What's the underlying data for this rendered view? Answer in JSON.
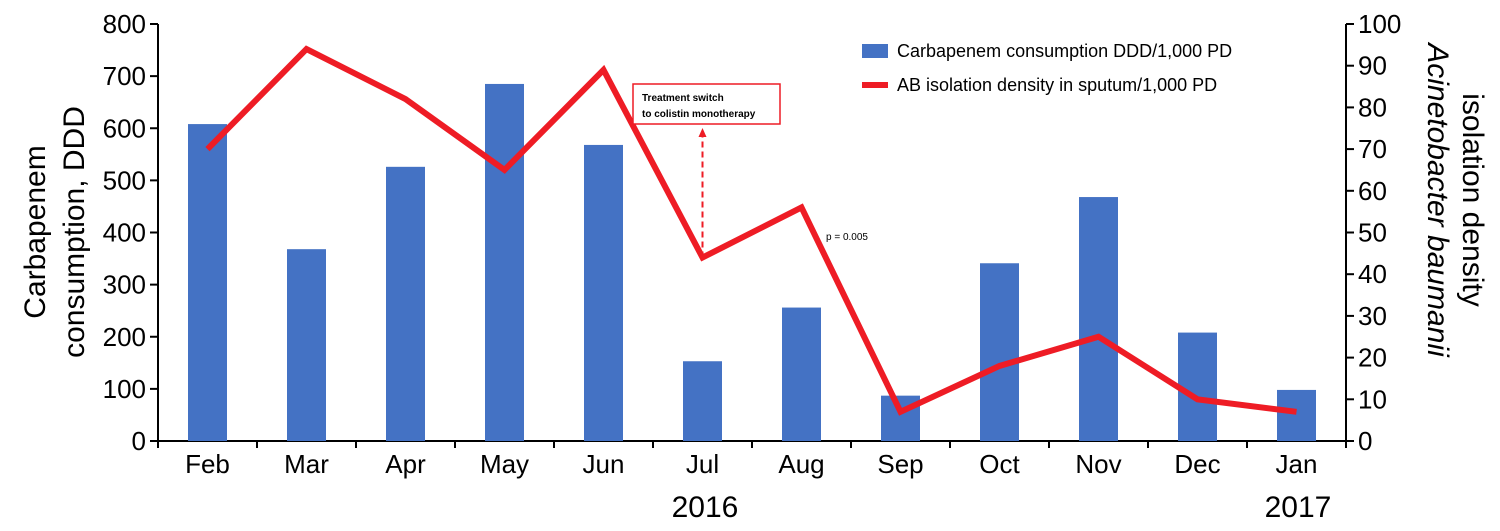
{
  "chart_data": {
    "type": "bar",
    "categories": [
      "Feb",
      "Mar",
      "Apr",
      "May",
      "Jun",
      "Jul",
      "Aug",
      "Sep",
      "Oct",
      "Nov",
      "Dec",
      "Jan"
    ],
    "year_labels": [
      "2016",
      "2017"
    ],
    "series": [
      {
        "name": "Carbapenem consumption DDD/1,000 PD",
        "type": "bar",
        "axis": "left",
        "color": "#4472C4",
        "values": [
          608,
          368,
          526,
          685,
          568,
          153,
          256,
          87,
          341,
          468,
          208,
          98
        ]
      },
      {
        "name": "AB isolation density in sputum/1,000 PD",
        "type": "line",
        "axis": "right",
        "color": "#EE1C25",
        "values": [
          70,
          94,
          82,
          65,
          89,
          44,
          56,
          7,
          18,
          25,
          10,
          7
        ]
      }
    ],
    "y_left": {
      "label_line1": "Carbapenem",
      "label_line2": "consumption, DDD",
      "ticks": [
        "0",
        "100",
        "200",
        "300",
        "400",
        "500",
        "600",
        "700",
        "800"
      ],
      "range": [
        0,
        800
      ]
    },
    "y_right": {
      "label_line1": "Acinetobacter baumanii",
      "label_line2": "isolation density",
      "ticks": [
        "0",
        "10",
        "20",
        "30",
        "40",
        "50",
        "60",
        "70",
        "80",
        "90",
        "100"
      ],
      "range": [
        0,
        100
      ]
    },
    "legend_position": "top-right",
    "annotations": {
      "treatment_line1": "Treatment switch",
      "treatment_line2": "to colistin monotherapy",
      "treatment_category": "Jul",
      "pvalue": "p = 0.005"
    },
    "grid": false
  }
}
